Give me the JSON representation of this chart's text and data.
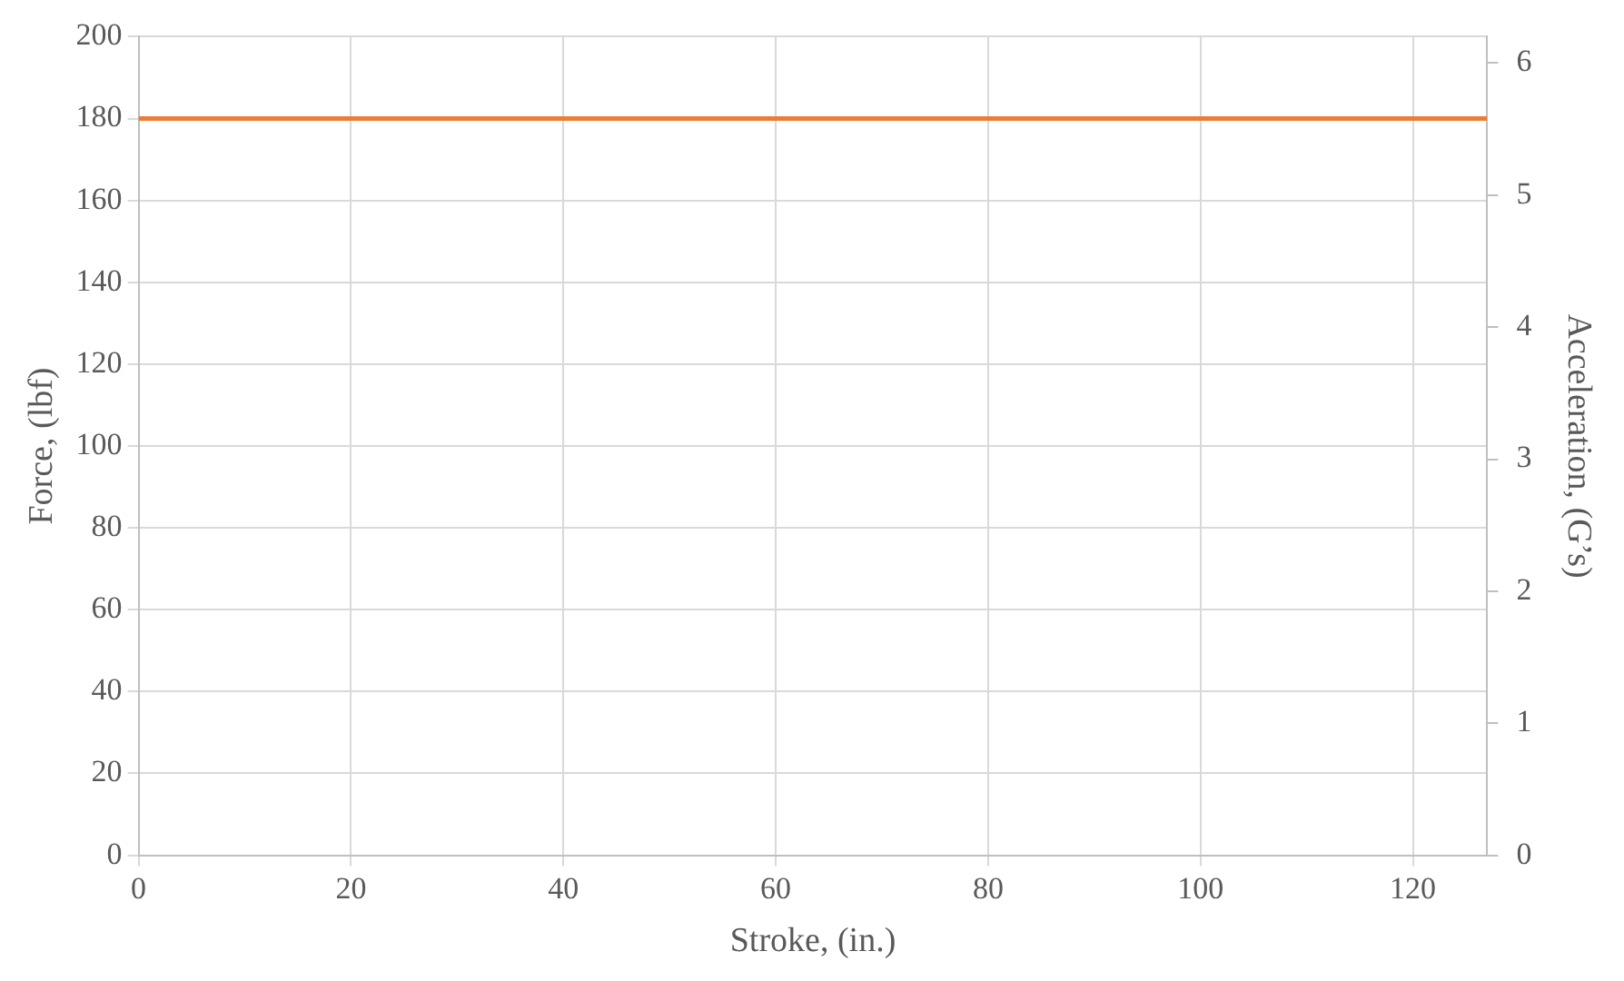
{
  "chart_data": {
    "type": "line",
    "xlabel": "Stroke, (in.)",
    "ylabel": "Force, (lbf)",
    "y2label": "Acceleration, (G’s)",
    "xlim": [
      0,
      127
    ],
    "xticks": [
      0,
      20,
      40,
      60,
      80,
      100,
      120
    ],
    "ylim": [
      0,
      200
    ],
    "yticks": [
      0,
      20,
      40,
      60,
      80,
      100,
      120,
      140,
      160,
      180,
      200
    ],
    "y2lim": [
      0,
      6.2
    ],
    "y2ticks": [
      0,
      1,
      2,
      3,
      4,
      5,
      6
    ],
    "grid": true,
    "legend": false,
    "marker": "none",
    "line_style": "solid",
    "series": [
      {
        "color": "#ed7d31",
        "x": [
          0,
          127
        ],
        "values": [
          180,
          180
        ]
      }
    ]
  }
}
